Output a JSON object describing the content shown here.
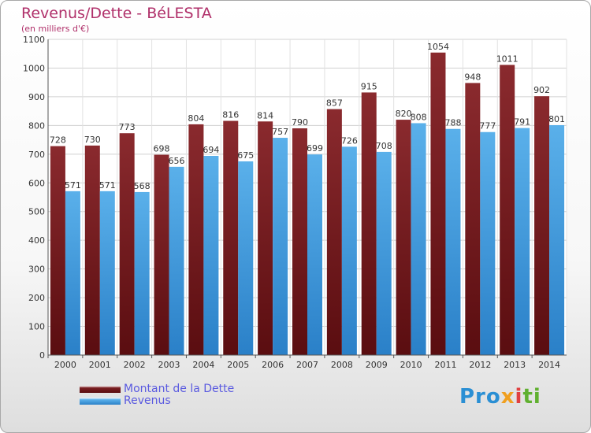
{
  "colors": {
    "dette": "#7a1e22",
    "revenus": "#3d9de0",
    "title": "#b0306a",
    "legend_text": "#5a5ae0"
  },
  "logo": {
    "text": "Proxiti",
    "parts": [
      "Pro",
      "x",
      "i",
      "ti"
    ]
  },
  "legend": {
    "items": [
      {
        "label": "Montant de la Dette",
        "color": "#7a1e22"
      },
      {
        "label": "Revenus",
        "color": "#3d9de0"
      }
    ]
  },
  "chart_data": {
    "type": "bar",
    "title": "Revenus/Dette - BéLESTA",
    "subtitle": "(en milliers d'€)",
    "xlabel": "",
    "ylabel": "",
    "ylim": [
      0,
      1100
    ],
    "yticks": [
      0,
      100,
      200,
      300,
      400,
      500,
      600,
      700,
      800,
      900,
      1000,
      1100
    ],
    "grid": true,
    "legend_position": "bottom-left",
    "categories": [
      "2000",
      "2001",
      "2002",
      "2003",
      "2004",
      "2005",
      "2006",
      "2007",
      "2008",
      "2009",
      "2010",
      "2011",
      "2012",
      "2013",
      "2014"
    ],
    "series": [
      {
        "name": "Montant de la Dette",
        "color": "#7a1e22",
        "values": [
          728,
          730,
          773,
          698,
          804,
          816,
          814,
          790,
          857,
          915,
          820,
          1054,
          948,
          1011,
          902
        ]
      },
      {
        "name": "Revenus",
        "color": "#3d9de0",
        "values": [
          571,
          571,
          568,
          656,
          694,
          675,
          757,
          699,
          726,
          708,
          808,
          788,
          777,
          791,
          801
        ]
      }
    ]
  }
}
